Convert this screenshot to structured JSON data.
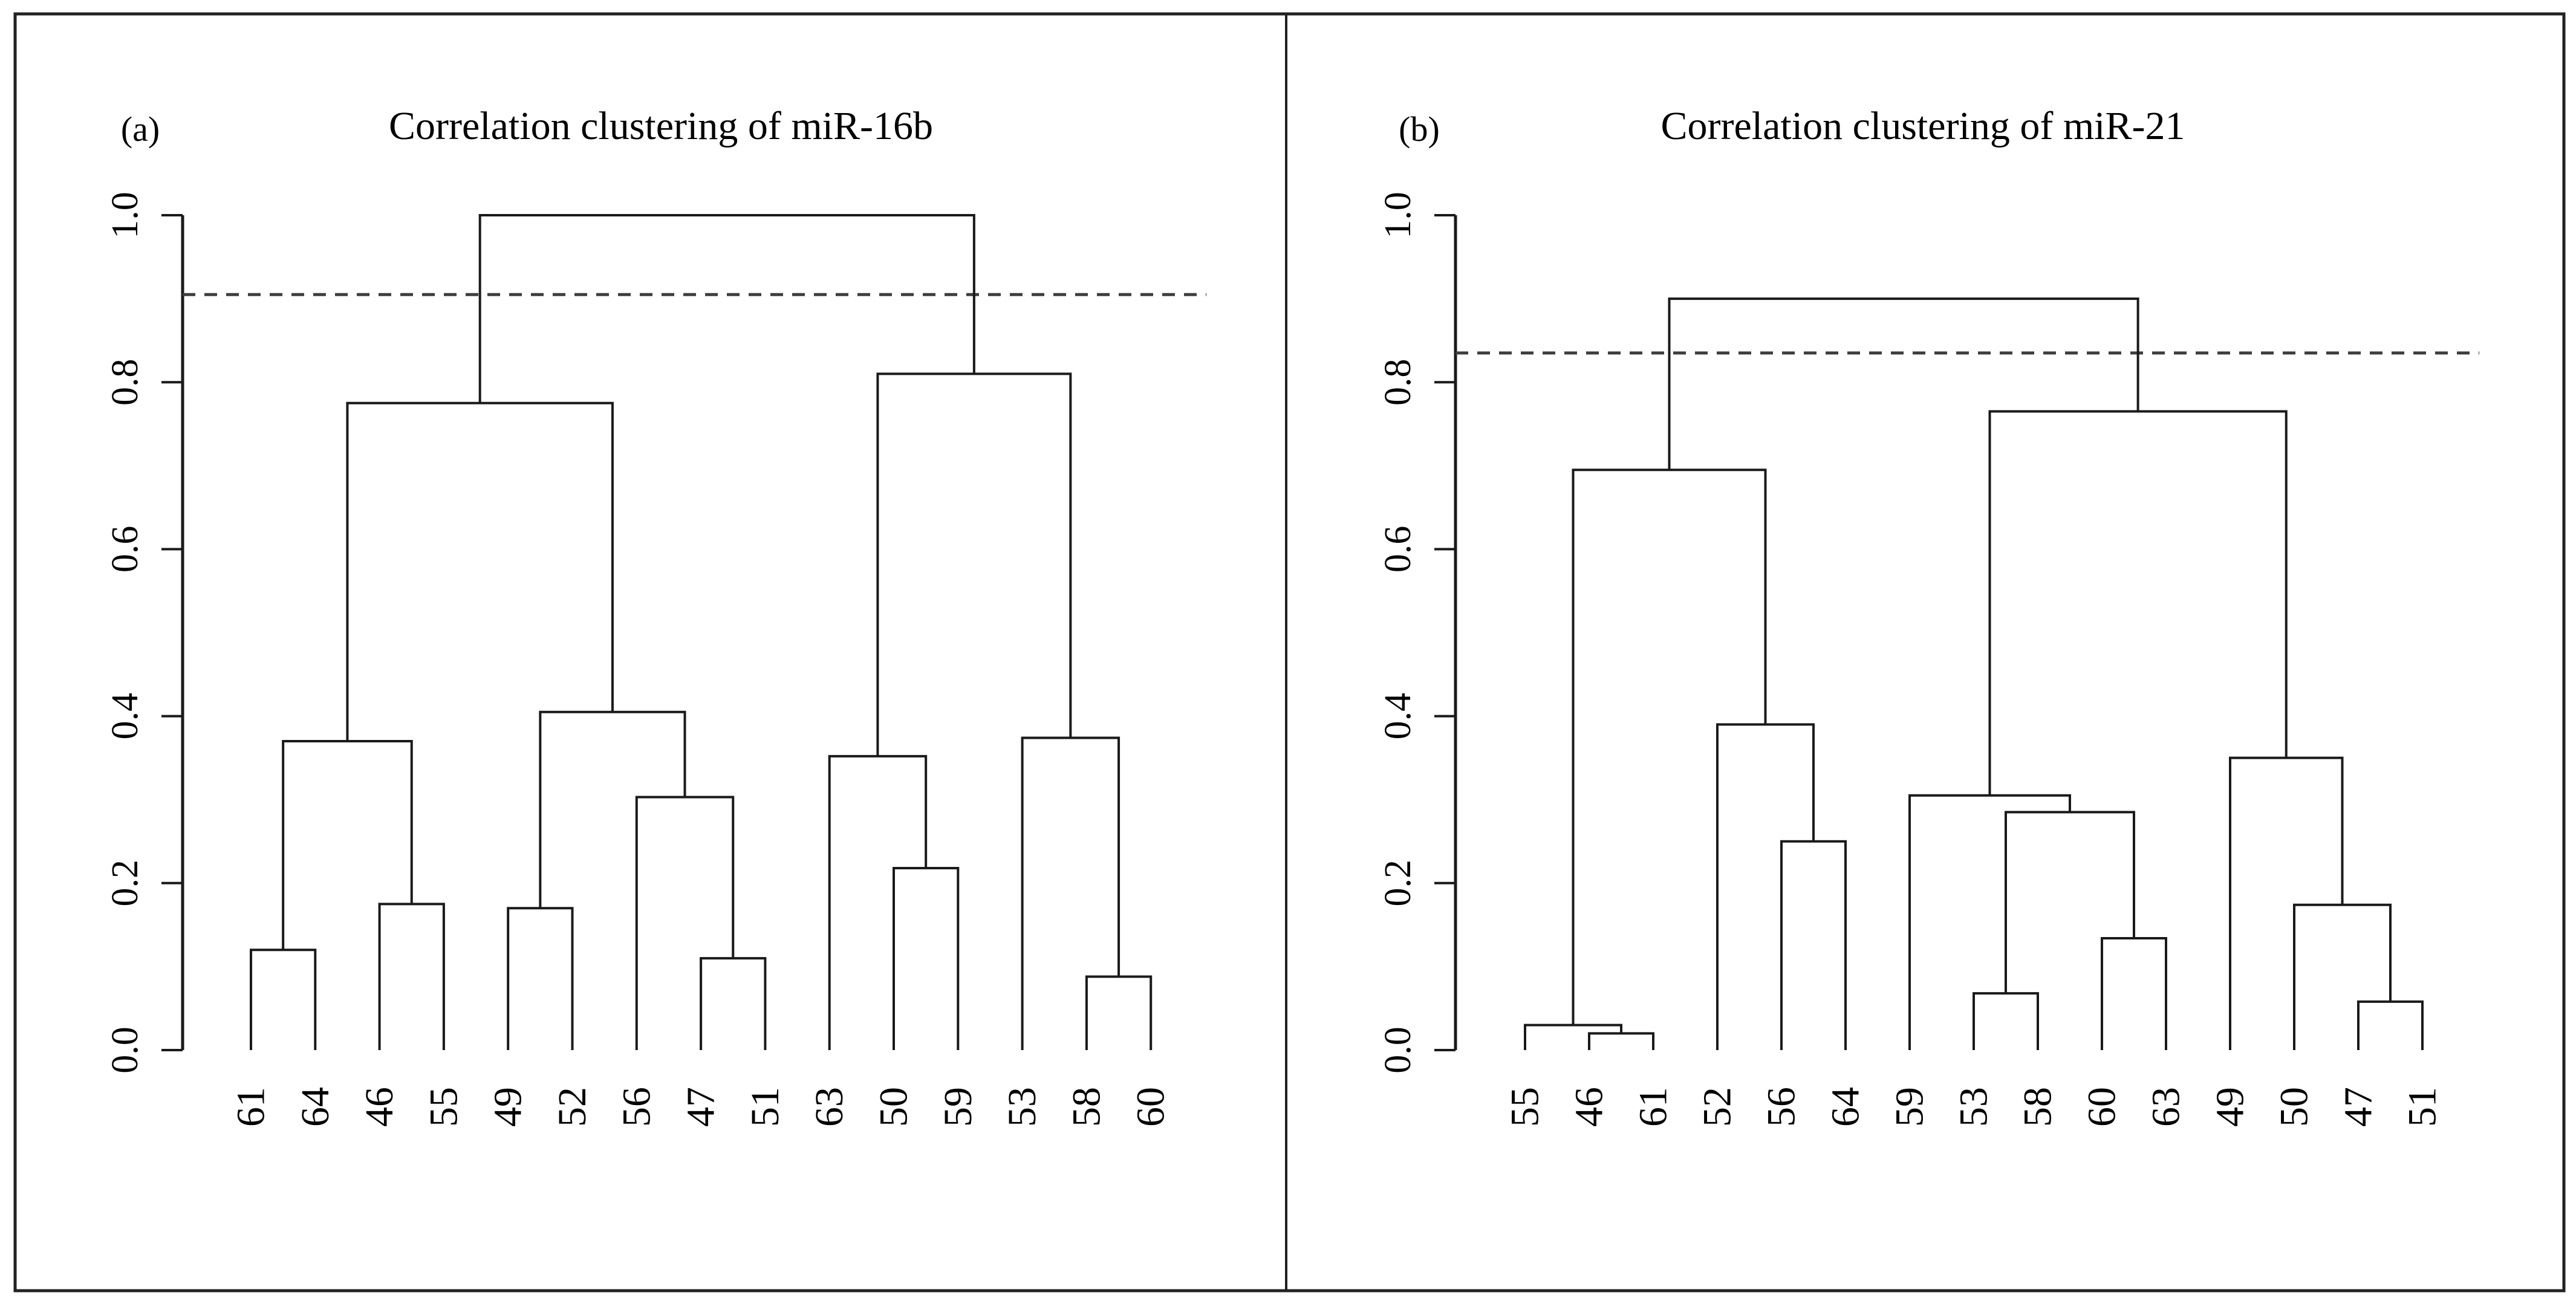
{
  "figure": {
    "background": "#ffffff",
    "border_color": "#222222",
    "line_color": "#1a1a1a",
    "dashed_line_color": "#3d3d3d",
    "text_color": "#000000"
  },
  "chart_data": [
    {
      "type": "dendrogram",
      "panel_label": "(a)",
      "title": "Correlation clustering of miR-16b",
      "ylim": [
        0.0,
        1.0
      ],
      "ytick_labels": [
        "0.0",
        "0.2",
        "0.4",
        "0.6",
        "0.8",
        "1.0"
      ],
      "ytick_values": [
        0.0,
        0.2,
        0.4,
        0.6,
        0.8,
        1.0
      ],
      "grid": "off",
      "threshold_line": 0.905,
      "leaves": [
        "61",
        "64",
        "46",
        "55",
        "49",
        "52",
        "56",
        "47",
        "51",
        "63",
        "50",
        "59",
        "53",
        "58",
        "60"
      ],
      "merges": [
        {
          "a": "L0",
          "b": "L1",
          "height": 0.12
        },
        {
          "a": "L2",
          "b": "L3",
          "height": 0.175
        },
        {
          "a": "M0",
          "b": "M1",
          "height": 0.37
        },
        {
          "a": "L4",
          "b": "L5",
          "height": 0.17
        },
        {
          "a": "L7",
          "b": "L8",
          "height": 0.11
        },
        {
          "a": "L6",
          "b": "M4",
          "height": 0.303
        },
        {
          "a": "M3",
          "b": "M5",
          "height": 0.405
        },
        {
          "a": "M2",
          "b": "M6",
          "height": 0.775
        },
        {
          "a": "L10",
          "b": "L11",
          "height": 0.218
        },
        {
          "a": "L9",
          "b": "M8",
          "height": 0.352
        },
        {
          "a": "L13",
          "b": "L14",
          "height": 0.088
        },
        {
          "a": "L12",
          "b": "M10",
          "height": 0.374
        },
        {
          "a": "M9",
          "b": "M11",
          "height": 0.81
        },
        {
          "a": "M7",
          "b": "M12",
          "height": 1.0
        }
      ]
    },
    {
      "type": "dendrogram",
      "panel_label": "(b)",
      "title": "Correlation clustering of miR-21",
      "ylim": [
        0.0,
        1.0
      ],
      "ytick_labels": [
        "0.0",
        "0.2",
        "0.4",
        "0.6",
        "0.8",
        "1.0"
      ],
      "ytick_values": [
        0.0,
        0.2,
        0.4,
        0.6,
        0.8,
        1.0
      ],
      "grid": "off",
      "threshold_line": 0.835,
      "leaves": [
        "55",
        "46",
        "61",
        "52",
        "56",
        "64",
        "59",
        "53",
        "58",
        "60",
        "63",
        "49",
        "50",
        "47",
        "51"
      ],
      "merges": [
        {
          "a": "L1",
          "b": "L2",
          "height": 0.02
        },
        {
          "a": "L0",
          "b": "M0",
          "height": 0.03
        },
        {
          "a": "L4",
          "b": "L5",
          "height": 0.25
        },
        {
          "a": "L3",
          "b": "M2",
          "height": 0.39
        },
        {
          "a": "M1",
          "b": "M3",
          "height": 0.695
        },
        {
          "a": "L7",
          "b": "L8",
          "height": 0.068
        },
        {
          "a": "L9",
          "b": "L10",
          "height": 0.134
        },
        {
          "a": "M5",
          "b": "M6",
          "height": 0.285
        },
        {
          "a": "L6",
          "b": "M7",
          "height": 0.305
        },
        {
          "a": "L13",
          "b": "L14",
          "height": 0.058
        },
        {
          "a": "L12",
          "b": "M9",
          "height": 0.174
        },
        {
          "a": "L11",
          "b": "M10",
          "height": 0.35
        },
        {
          "a": "M8",
          "b": "M11",
          "height": 0.765
        },
        {
          "a": "M4",
          "b": "M12",
          "height": 0.9
        }
      ]
    }
  ]
}
